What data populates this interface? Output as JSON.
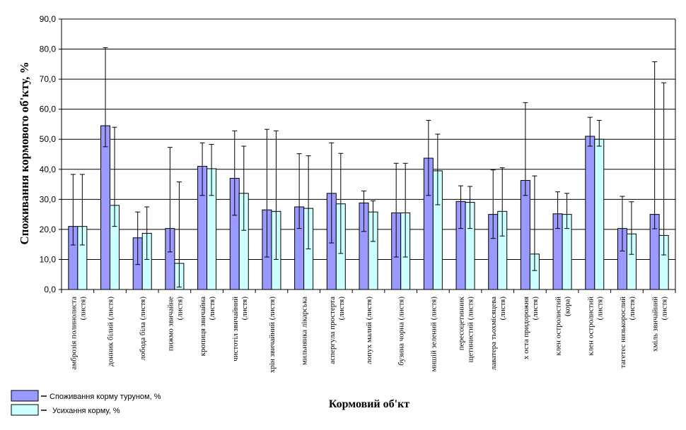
{
  "chart_data": {
    "type": "bar",
    "xlabel": "Кормовий об'кт",
    "ylabel": "Споживання кормового об'кту, %",
    "ylim": [
      0,
      90
    ],
    "ytick_labels": [
      "0,0",
      "10,0",
      "20,0",
      "30,0",
      "40,0",
      "50,0",
      "60,0",
      "70,0",
      "80,0",
      "90,0"
    ],
    "grid": true,
    "legend_position": "bottom-left",
    "categories": [
      [
        "амброзія полинолиста",
        "(листя)"
      ],
      [
        "донник білий (листя)"
      ],
      [
        "лобода біла (листя)"
      ],
      [
        "пижмо звичайне",
        "(листя)"
      ],
      [
        "кропиця звичайна",
        "(листя)"
      ],
      [
        "чистотіл звичайний",
        "(листя)"
      ],
      [
        "хрін звичайний (листя)"
      ],
      [
        "мильнянка лікарська"
      ],
      [
        "аспергула простерта",
        "(листя)"
      ],
      [
        "лопух малий (листя)"
      ],
      [
        "бузина чорна (листя)"
      ],
      [
        "мишій зелений (листя)"
      ],
      [
        "пересоцетинник",
        "щетинистий (листя)"
      ],
      [
        "лаватера тьохмісяцева",
        "(листя)"
      ],
      [
        "х оста придорожня",
        "(листя)"
      ],
      [
        "клен остролистий",
        "(кора)"
      ],
      [
        "клен остролистий",
        "(листя)"
      ],
      [
        "тагетес низькорослий",
        "(листя)"
      ],
      [
        "хміль звичайний",
        "(листя)"
      ]
    ],
    "series": [
      {
        "name": "Споживання корму туруном, %",
        "color": "#9999ff",
        "values": [
          21.0,
          54.5,
          17.2,
          20.3,
          41.0,
          37.0,
          26.5,
          27.5,
          32.0,
          28.8,
          25.5,
          43.7,
          29.3,
          25.0,
          36.3,
          25.2,
          51.0,
          20.3,
          25.0
        ],
        "err_high": [
          38.3,
          80.5,
          25.8,
          47.3,
          48.8,
          52.8,
          53.3,
          45.2,
          48.8,
          32.8,
          42.0,
          56.3,
          34.5,
          39.8,
          62.2,
          32.5,
          57.3,
          31.0,
          75.8
        ],
        "err_low": [
          14.8,
          47.5,
          8.3,
          12.5,
          31.3,
          24.7,
          10.8,
          20.3,
          15.5,
          19.3,
          10.8,
          31.3,
          20.3,
          17.0,
          31.3,
          20.3,
          47.7,
          12.8,
          20.2
        ]
      },
      {
        "name": "Усихання корму, %",
        "color": "#ccffff",
        "values": [
          21.0,
          28.0,
          18.7,
          8.7,
          40.2,
          32.0,
          26.0,
          27.0,
          28.5,
          25.8,
          25.5,
          39.5,
          29.0,
          26.0,
          11.8,
          25.0,
          50.0,
          18.5,
          18.0
        ],
        "err_high": [
          38.3,
          54.0,
          27.5,
          35.8,
          48.3,
          47.7,
          52.8,
          44.5,
          45.3,
          29.5,
          42.0,
          51.7,
          34.3,
          40.5,
          37.8,
          32.0,
          56.3,
          29.2,
          68.8
        ],
        "err_low": [
          14.8,
          21.0,
          10.0,
          0.8,
          31.3,
          19.7,
          10.0,
          13.5,
          12.0,
          16.0,
          10.8,
          28.2,
          20.3,
          17.8,
          6.3,
          20.3,
          47.7,
          11.7,
          11.5
        ]
      }
    ]
  }
}
